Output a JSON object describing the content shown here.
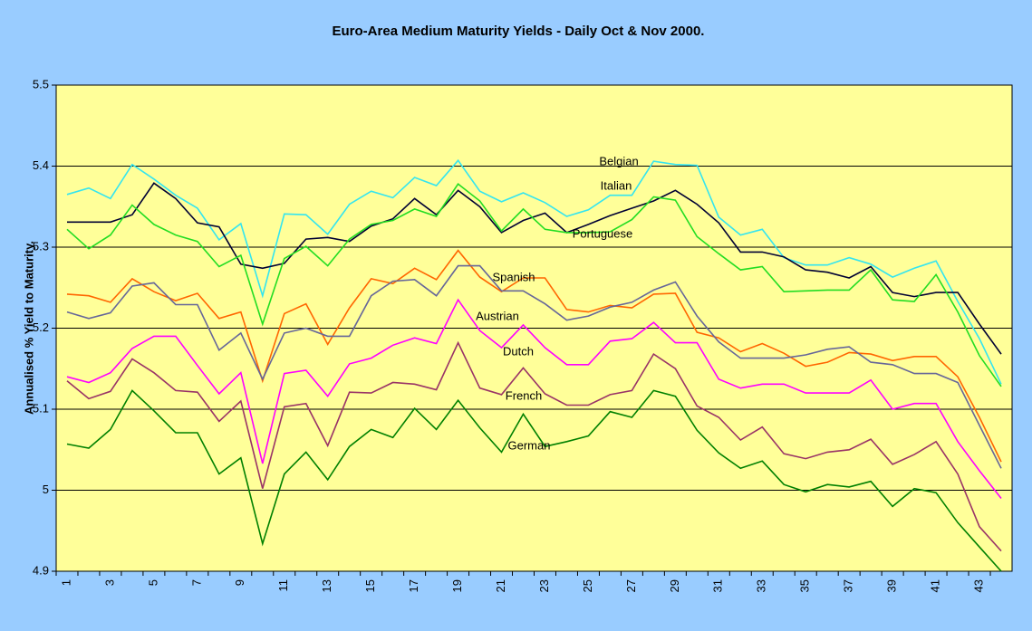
{
  "chart_data": {
    "type": "line",
    "title": "Euro-Area Medium Maturity Yields - Daily Oct & Nov 2000.",
    "y_label": "Annualised % Yield to Maturity.",
    "categories": [
      1,
      null,
      3,
      null,
      5,
      null,
      7,
      null,
      9,
      null,
      11,
      null,
      13,
      null,
      15,
      null,
      17,
      null,
      19,
      null,
      21,
      null,
      23,
      null,
      25,
      null,
      27,
      null,
      29,
      null,
      31,
      null,
      33,
      null,
      35,
      null,
      37,
      null,
      39,
      null,
      41,
      null,
      43,
      null
    ],
    "ylim": [
      4.9,
      5.5
    ],
    "yticks": [
      4.9,
      5,
      5.1,
      5.2,
      5.3,
      5.4,
      5.5
    ],
    "grid": true,
    "series": [
      {
        "name": "Belgian",
        "color": "#33e5f0",
        "values": [
          5.365,
          5.373,
          5.36,
          5.402,
          5.384,
          5.364,
          5.348,
          5.309,
          5.329,
          5.24,
          5.341,
          5.34,
          5.316,
          5.353,
          5.369,
          5.361,
          5.386,
          5.376,
          5.407,
          5.369,
          5.356,
          5.367,
          5.355,
          5.338,
          5.346,
          5.364,
          5.364,
          5.406,
          5.402,
          5.401,
          5.337,
          5.315,
          5.322,
          5.287,
          5.278,
          5.278,
          5.287,
          5.279,
          5.263,
          5.274,
          5.283,
          5.233,
          5.187,
          5.131
        ]
      },
      {
        "name": "Italian",
        "color": "#000033",
        "values": [
          5.331,
          5.331,
          5.331,
          5.34,
          5.379,
          5.36,
          5.33,
          5.325,
          5.279,
          5.274,
          5.28,
          5.31,
          5.312,
          5.307,
          5.326,
          5.335,
          5.36,
          5.34,
          5.37,
          5.35,
          5.318,
          5.333,
          5.342,
          5.318,
          5.328,
          5.339,
          5.348,
          5.357,
          5.37,
          5.353,
          5.33,
          5.294,
          5.294,
          5.288,
          5.272,
          5.269,
          5.262,
          5.276,
          5.244,
          5.239,
          5.244,
          5.244,
          5.205,
          5.168
        ]
      },
      {
        "name": "Portuguese",
        "color": "#22dd22",
        "values": [
          5.322,
          5.298,
          5.315,
          5.352,
          5.328,
          5.315,
          5.307,
          5.276,
          5.29,
          5.205,
          5.286,
          5.301,
          5.277,
          5.31,
          5.328,
          5.333,
          5.347,
          5.338,
          5.378,
          5.357,
          5.32,
          5.347,
          5.322,
          5.318,
          5.318,
          5.319,
          5.334,
          5.362,
          5.358,
          5.313,
          5.292,
          5.272,
          5.276,
          5.245,
          5.246,
          5.247,
          5.247,
          5.272,
          5.235,
          5.233,
          5.266,
          5.22,
          5.166,
          5.128
        ]
      },
      {
        "name": "Spanish",
        "color": "#ff6600",
        "values": [
          5.242,
          5.24,
          5.232,
          5.261,
          5.245,
          5.234,
          5.243,
          5.212,
          5.22,
          5.135,
          5.218,
          5.23,
          5.18,
          5.225,
          5.261,
          5.255,
          5.274,
          5.26,
          5.296,
          5.263,
          5.245,
          5.262,
          5.262,
          5.223,
          5.22,
          5.228,
          5.225,
          5.242,
          5.243,
          5.195,
          5.188,
          5.171,
          5.181,
          5.169,
          5.153,
          5.158,
          5.17,
          5.168,
          5.16,
          5.165,
          5.165,
          5.14,
          5.09,
          5.035
        ]
      },
      {
        "name": "Austrian",
        "color": "#666699",
        "values": [
          5.22,
          5.212,
          5.219,
          5.252,
          5.256,
          5.229,
          5.229,
          5.173,
          5.194,
          5.137,
          5.194,
          5.2,
          5.19,
          5.19,
          5.24,
          5.258,
          5.26,
          5.24,
          5.277,
          5.277,
          5.246,
          5.246,
          5.23,
          5.21,
          5.215,
          5.226,
          5.232,
          5.247,
          5.257,
          5.215,
          5.183,
          5.163,
          5.163,
          5.163,
          5.167,
          5.174,
          5.177,
          5.158,
          5.155,
          5.144,
          5.144,
          5.133,
          5.08,
          5.027
        ]
      },
      {
        "name": "Dutch",
        "color": "#ff00ff",
        "values": [
          5.14,
          5.133,
          5.145,
          5.175,
          5.19,
          5.19,
          5.154,
          5.119,
          5.145,
          5.033,
          5.144,
          5.148,
          5.116,
          5.156,
          5.163,
          5.179,
          5.188,
          5.181,
          5.235,
          5.197,
          5.176,
          5.204,
          5.176,
          5.155,
          5.155,
          5.184,
          5.187,
          5.207,
          5.182,
          5.182,
          5.137,
          5.126,
          5.131,
          5.131,
          5.12,
          5.12,
          5.12,
          5.136,
          5.1,
          5.107,
          5.107,
          5.06,
          5.024,
          4.99
        ]
      },
      {
        "name": "French",
        "color": "#993366",
        "values": [
          5.135,
          5.113,
          5.122,
          5.162,
          5.145,
          5.123,
          5.121,
          5.085,
          5.11,
          5.002,
          5.103,
          5.107,
          5.055,
          5.121,
          5.12,
          5.133,
          5.131,
          5.124,
          5.182,
          5.126,
          5.118,
          5.151,
          5.119,
          5.105,
          5.105,
          5.118,
          5.123,
          5.168,
          5.15,
          5.104,
          5.09,
          5.062,
          5.078,
          5.045,
          5.039,
          5.047,
          5.05,
          5.063,
          5.032,
          5.044,
          5.06,
          5.02,
          4.955,
          4.925
        ]
      },
      {
        "name": "German",
        "color": "#008000",
        "values": [
          5.057,
          5.052,
          5.075,
          5.123,
          5.098,
          5.071,
          5.071,
          5.02,
          5.04,
          4.934,
          5.02,
          5.047,
          5.013,
          5.054,
          5.075,
          5.065,
          5.101,
          5.075,
          5.111,
          5.077,
          5.047,
          5.094,
          5.054,
          5.06,
          5.067,
          5.097,
          5.09,
          5.123,
          5.116,
          5.074,
          5.046,
          5.027,
          5.036,
          5.007,
          4.998,
          5.007,
          5.004,
          5.011,
          4.98,
          5.002,
          4.997,
          4.96,
          4.93,
          4.9
        ]
      }
    ]
  }
}
